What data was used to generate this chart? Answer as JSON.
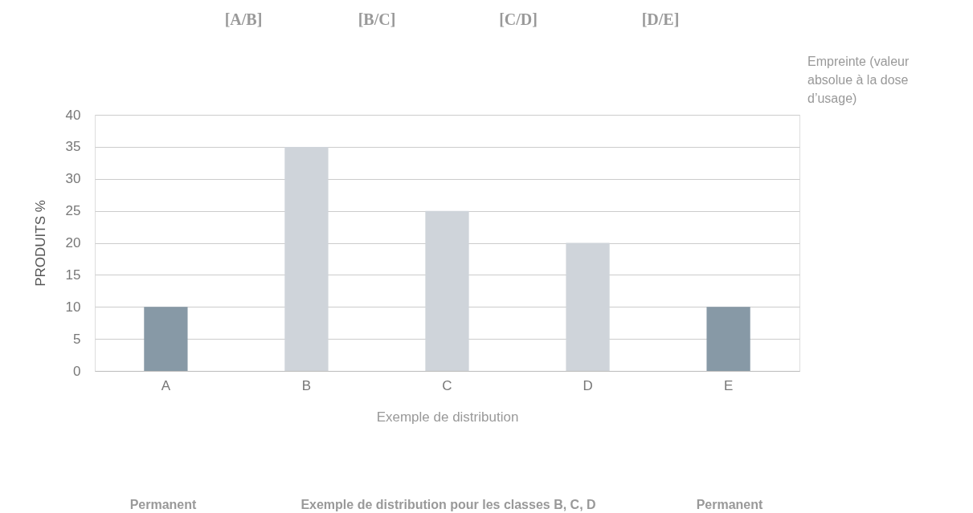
{
  "chart_data": {
    "type": "bar",
    "categories": [
      "A",
      "B",
      "C",
      "D",
      "E"
    ],
    "values": [
      10,
      35,
      25,
      20,
      10
    ],
    "colors": [
      "#8799a6",
      "#cfd4da",
      "#cfd4da",
      "#cfd4da",
      "#8799a6"
    ],
    "ylabel": "PRODUITS %",
    "ylim": [
      0,
      40
    ],
    "yticks": [
      0,
      5,
      10,
      15,
      20,
      25,
      30,
      35,
      40
    ],
    "grid": "y",
    "annotations": [
      "[A/B]",
      "[B/C]",
      "[C/D]",
      "[D/E]",
      "Empreinte (valeur absolue à la dose d’usage)",
      "Exemple de distribution",
      "Permanent",
      "Exemple de distribution pour les classes B, C, D",
      "Permanent"
    ]
  }
}
